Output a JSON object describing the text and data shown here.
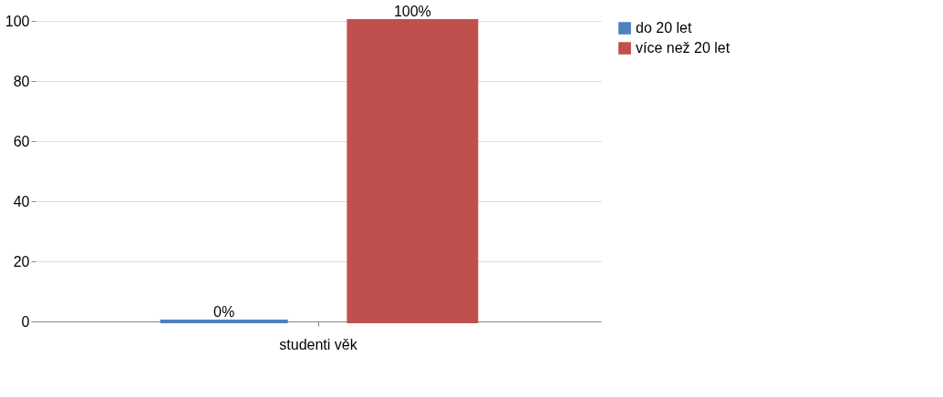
{
  "chart_data": {
    "type": "bar",
    "categories": [
      "studenti věk"
    ],
    "series": [
      {
        "name": "do 20 let",
        "color": "#4f81bd",
        "values": [
          0
        ],
        "value_labels": [
          "0%"
        ]
      },
      {
        "name": "více než 20 let",
        "color": "#c0504d",
        "values": [
          100
        ],
        "value_labels": [
          "100%"
        ]
      }
    ],
    "ylim": [
      0,
      100
    ],
    "yticks": [
      0,
      20,
      40,
      60,
      80,
      100
    ],
    "grid": "y",
    "legend": "right"
  }
}
